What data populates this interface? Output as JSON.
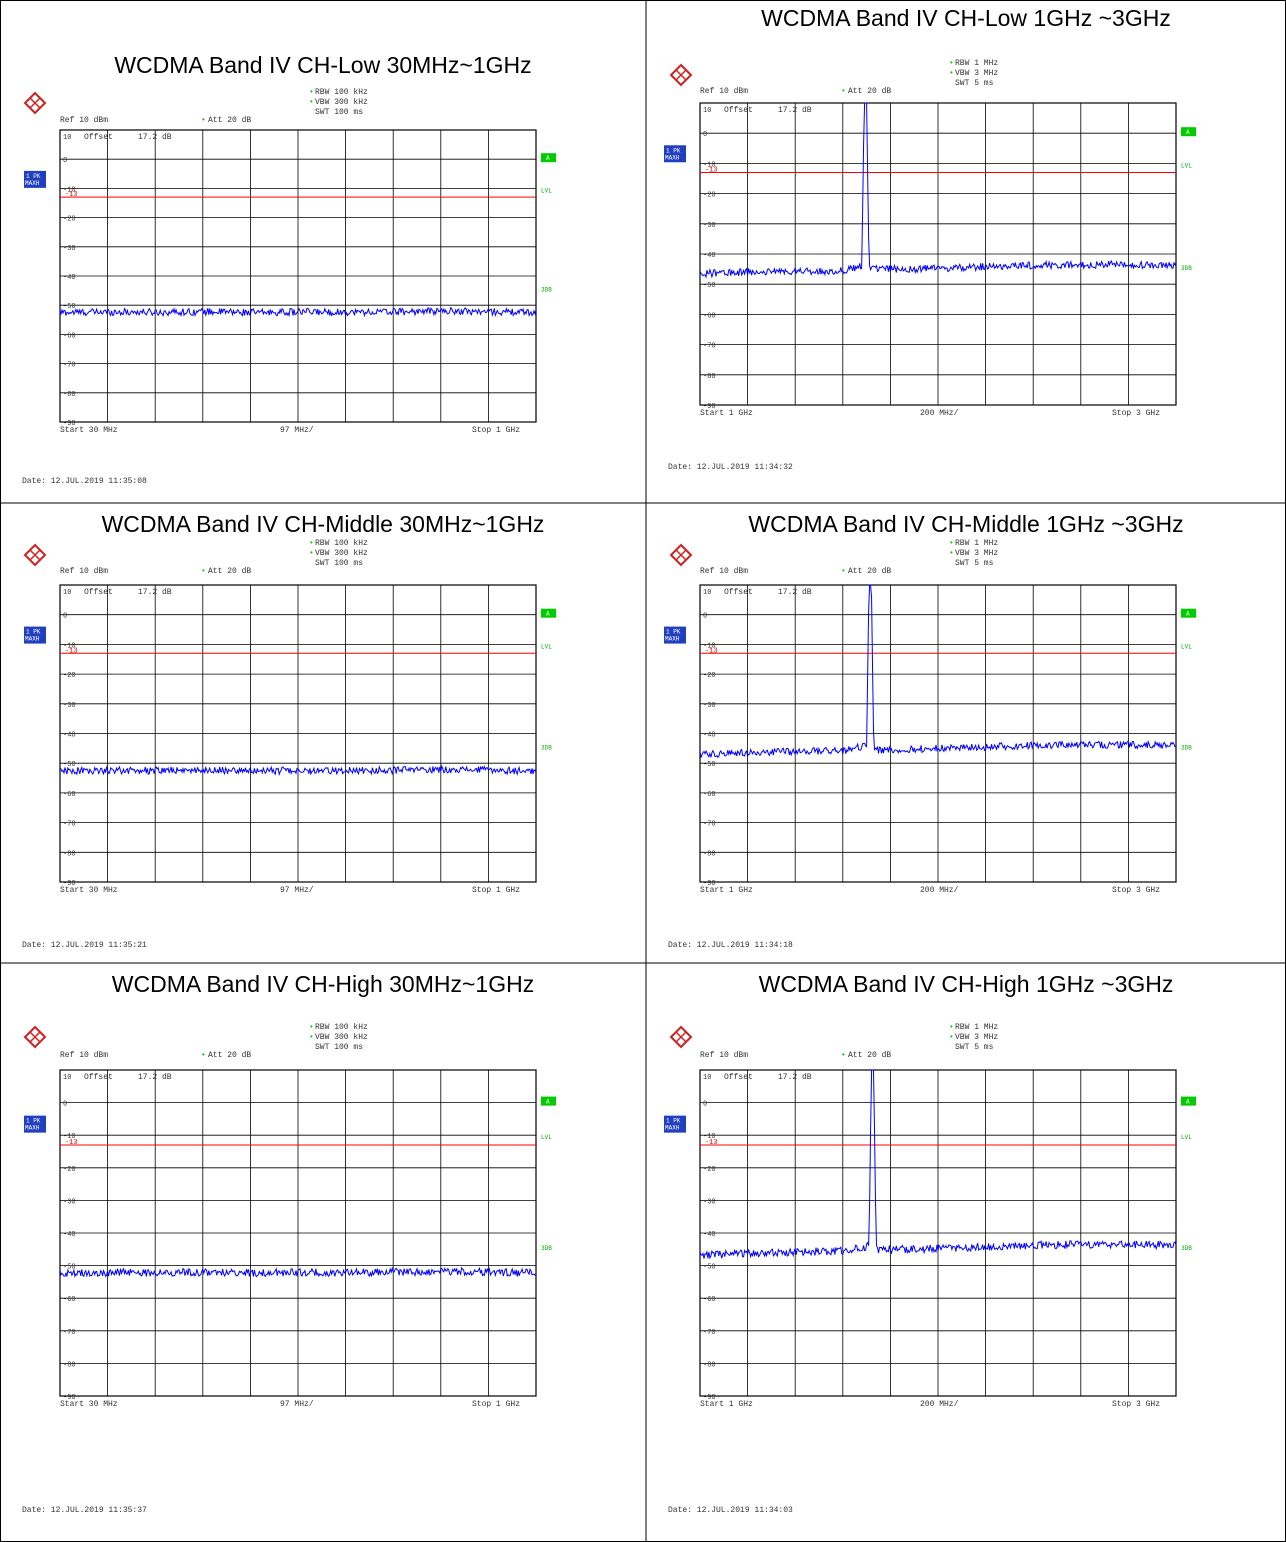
{
  "colors": {
    "trace": "#0000ff",
    "limit_line": "#ff0000",
    "grid": "#000000",
    "trace_badge": "#2040c0",
    "side_badge": "#00cc00",
    "side_text": "#00aa00"
  },
  "icons": {
    "logo": "rohde-schwarz-logo"
  },
  "panels": [
    {
      "title": "WCDMA Band IV CH-Low 30MHz~1GHz",
      "settings": {
        "rbw": "RBW 100 kHz",
        "vbw": "VBW 300 kHz",
        "swt": "SWT 100 ms",
        "ref": "Ref  10 dBm",
        "att": "Att  20 dB",
        "offset_lbl": "Offset",
        "offset_val": "17.2 dB"
      },
      "trace_badge": [
        "1 PK",
        "MAXH"
      ],
      "side_labels": [
        "A",
        "LVL",
        "3DB"
      ],
      "footer": {
        "start": "Start  30 MHz",
        "span": "97 MHz/",
        "stop": "Stop  1 GHz"
      },
      "date": "Date: 12.JUL.2019  11:35:08",
      "chart_data": {
        "type": "line",
        "yticks": [
          "10",
          "0",
          "-10",
          "-20",
          "-30",
          "-40",
          "-50",
          "-60",
          "-70",
          "-80",
          "-90"
        ],
        "ylim": [
          -90,
          10
        ],
        "xlim": [
          30,
          1000
        ],
        "limit_line": {
          "label": "-13",
          "value": -13
        },
        "series": [
          {
            "x": [
              30,
              130,
              230,
              330,
              430,
              530,
              630,
              730,
              830,
              930,
              1000
            ],
            "y": [
              -52.5,
              -52.3,
              -52.4,
              -52.2,
              -52.5,
              -52.3,
              -52.4,
              -52.2,
              -52.0,
              -52.3,
              -52.5
            ]
          }
        ]
      }
    },
    {
      "title": "WCDMA Band IV CH-Low 1GHz ~3GHz",
      "settings": {
        "rbw": "RBW 1 MHz",
        "vbw": "VBW 3 MHz",
        "swt": "SWT 5 ms",
        "ref": "Ref  10 dBm",
        "att": "Att  20 dB",
        "offset_lbl": "Offset",
        "offset_val": "17.2 dB"
      },
      "trace_badge": [
        "1 PK",
        "MAXH"
      ],
      "side_labels": [
        "A",
        "LVL",
        "3DB"
      ],
      "footer": {
        "start": "Start  1 GHz",
        "span": "200 MHz/",
        "stop": "Stop  3 GHz"
      },
      "date": "Date: 12.JUL.2019  11:34:32",
      "chart_data": {
        "type": "line",
        "yticks": [
          "10",
          "0",
          "-10",
          "-20",
          "-30",
          "-40",
          "-50",
          "-60",
          "-70",
          "-80",
          "-90"
        ],
        "ylim": [
          -90,
          10
        ],
        "xlim": [
          1000,
          3000
        ],
        "limit_line": {
          "label": "-13",
          "value": -13
        },
        "series": [
          {
            "x": [
              1000,
              1200,
              1400,
              1600,
              1680,
              1690,
              1700,
              1710,
              1720,
              1800,
              2000,
              2200,
              2400,
              2600,
              2800,
              3000
            ],
            "y": [
              -46.5,
              -46,
              -45.8,
              -45.5,
              -44,
              10,
              10,
              -44,
              -45,
              -45,
              -44.8,
              -44.2,
              -43.8,
              -43.5,
              -43.5,
              -44
            ]
          }
        ]
      }
    },
    {
      "title": "WCDMA Band IV CH-Middle 30MHz~1GHz",
      "settings": {
        "rbw": "RBW 100 kHz",
        "vbw": "VBW 300 kHz",
        "swt": "SWT 100 ms",
        "ref": "Ref  10 dBm",
        "att": "Att  20 dB",
        "offset_lbl": "Offset",
        "offset_val": "17.2 dB"
      },
      "trace_badge": [
        "1 PK",
        "MAXH"
      ],
      "side_labels": [
        "A",
        "LVL",
        "3DB"
      ],
      "footer": {
        "start": "Start  30 MHz",
        "span": "97 MHz/",
        "stop": "Stop  1 GHz"
      },
      "date": "Date: 12.JUL.2019  11:35:21",
      "chart_data": {
        "type": "line",
        "yticks": [
          "10",
          "0",
          "-10",
          "-20",
          "-30",
          "-40",
          "-50",
          "-60",
          "-70",
          "-80",
          "-90"
        ],
        "ylim": [
          -90,
          10
        ],
        "xlim": [
          30,
          1000
        ],
        "limit_line": {
          "label": "-13",
          "value": -13
        },
        "series": [
          {
            "x": [
              30,
              130,
              230,
              330,
              430,
              530,
              630,
              730,
              830,
              930,
              1000
            ],
            "y": [
              -52.6,
              -52.4,
              -52.5,
              -52.3,
              -52.6,
              -52.4,
              -52.5,
              -52.3,
              -52.1,
              -52.4,
              -52.6
            ]
          }
        ]
      }
    },
    {
      "title": "WCDMA Band IV CH-Middle 1GHz ~3GHz",
      "settings": {
        "rbw": "RBW 1 MHz",
        "vbw": "VBW 3 MHz",
        "swt": "SWT 5 ms",
        "ref": "Ref  10 dBm",
        "att": "Att  20 dB",
        "offset_lbl": "Offset",
        "offset_val": "17.2 dB"
      },
      "trace_badge": [
        "1 PK",
        "MAXH"
      ],
      "side_labels": [
        "A",
        "LVL",
        "3DB"
      ],
      "footer": {
        "start": "Start  1 GHz",
        "span": "200 MHz/",
        "stop": "Stop  3 GHz"
      },
      "date": "Date: 12.JUL.2019  11:34:18",
      "chart_data": {
        "type": "line",
        "yticks": [
          "10",
          "0",
          "-10",
          "-20",
          "-30",
          "-40",
          "-50",
          "-60",
          "-70",
          "-80",
          "-90"
        ],
        "ylim": [
          -90,
          10
        ],
        "xlim": [
          1000,
          3000
        ],
        "limit_line": {
          "label": "-13",
          "value": -13
        },
        "series": [
          {
            "x": [
              1000,
              1200,
              1400,
              1600,
              1700,
              1710,
              1720,
              1730,
              1740,
              1800,
              2000,
              2200,
              2400,
              2600,
              2800,
              3000
            ],
            "y": [
              -47,
              -46.5,
              -46,
              -45.8,
              -44,
              10,
              10,
              -44,
              -45.5,
              -45.5,
              -45,
              -44.5,
              -44,
              -43.8,
              -43.8,
              -44
            ]
          }
        ]
      }
    },
    {
      "title": "WCDMA Band IV CH-High 30MHz~1GHz",
      "settings": {
        "rbw": "RBW 100 kHz",
        "vbw": "VBW 300 kHz",
        "swt": "SWT 100 ms",
        "ref": "Ref  10 dBm",
        "att": "Att  20 dB",
        "offset_lbl": "Offset",
        "offset_val": "17.2 dB"
      },
      "trace_badge": [
        "1 PK",
        "MAXH"
      ],
      "side_labels": [
        "A",
        "LVL",
        "3DB"
      ],
      "footer": {
        "start": "Start  30 MHz",
        "span": "97 MHz/",
        "stop": "Stop  1 GHz"
      },
      "date": "Date: 12.JUL.2019  11:35:37",
      "chart_data": {
        "type": "line",
        "yticks": [
          "10",
          "0",
          "-10",
          "-20",
          "-30",
          "-40",
          "-50",
          "-60",
          "-70",
          "-80",
          "-90"
        ],
        "ylim": [
          -90,
          10
        ],
        "xlim": [
          30,
          1000
        ],
        "limit_line": {
          "label": "-13",
          "value": -13
        },
        "series": [
          {
            "x": [
              30,
              130,
              230,
              330,
              430,
              530,
              630,
              730,
              830,
              930,
              1000
            ],
            "y": [
              -52.3,
              -52.1,
              -52.2,
              -52.0,
              -52.3,
              -52.1,
              -52.2,
              -52.0,
              -51.8,
              -52.1,
              -52.3
            ]
          }
        ]
      }
    },
    {
      "title": "WCDMA Band IV CH-High 1GHz ~3GHz",
      "settings": {
        "rbw": "RBW 1 MHz",
        "vbw": "VBW 3 MHz",
        "swt": "SWT 5 ms",
        "ref": "Ref  10 dBm",
        "att": "Att  20 dB",
        "offset_lbl": "Offset",
        "offset_val": "17.2 dB"
      },
      "trace_badge": [
        "1 PK",
        "MAXH"
      ],
      "side_labels": [
        "A",
        "LVL",
        "3DB"
      ],
      "footer": {
        "start": "Start  1 GHz",
        "span": "200 MHz/",
        "stop": "Stop  3 GHz"
      },
      "date": "Date: 12.JUL.2019  11:34:03",
      "chart_data": {
        "type": "line",
        "yticks": [
          "10",
          "0",
          "-10",
          "-20",
          "-30",
          "-40",
          "-50",
          "-60",
          "-70",
          "-80",
          "-90"
        ],
        "ylim": [
          -90,
          10
        ],
        "xlim": [
          1000,
          3000
        ],
        "limit_line": {
          "label": "-13",
          "value": -13
        },
        "series": [
          {
            "x": [
              1000,
              1200,
              1400,
              1600,
              1710,
              1720,
              1730,
              1740,
              1750,
              1800,
              2000,
              2200,
              2400,
              2600,
              2800,
              3000
            ],
            "y": [
              -46.8,
              -46.3,
              -45.8,
              -45.5,
              -44,
              10,
              10,
              -44,
              -45,
              -45,
              -44.8,
              -44.2,
              -43.8,
              -43.5,
              -43.5,
              -43.8
            ]
          }
        ]
      }
    }
  ]
}
